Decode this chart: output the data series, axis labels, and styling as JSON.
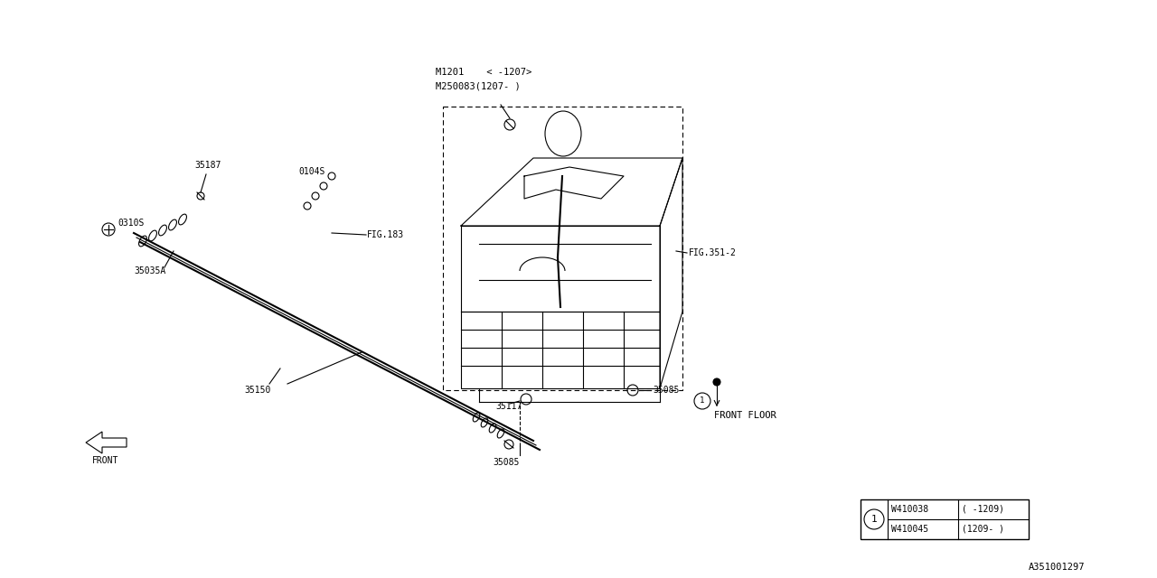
{
  "bg_color": "#ffffff",
  "line_color": "#000000",
  "part_labels": {
    "M1201_line1": "M1201    < -1207>",
    "M1201_line2": "M250083(1207- )",
    "FIG183": "FIG.183",
    "FIG351": "FIG.351-2",
    "lbl_35187": "35187",
    "lbl_0310S": "0310S",
    "lbl_0104S": "0104S",
    "lbl_35035A": "35035A",
    "lbl_35150": "35150",
    "lbl_35117": "35117",
    "lbl_35085_right": "35085",
    "lbl_35085_bottom": "35085",
    "lbl_FRONT_FLOOR": "FRONT FLOOR",
    "lbl_FRONT": "FRONT"
  },
  "table": {
    "circle_label": "1",
    "row1_part": "W410038",
    "row1_date": "( -1209)",
    "row2_part": "W410045",
    "row2_date": "(1209- )",
    "diagram_id": "A351001297"
  },
  "font_size": 8,
  "line_width": 0.8
}
